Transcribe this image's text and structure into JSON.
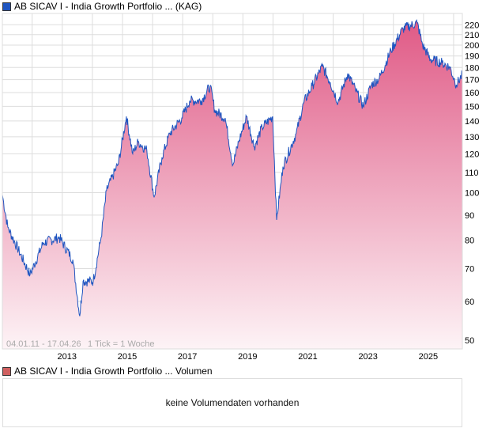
{
  "legend_main": "AB SICAV I - India Growth Portfolio ... (KAG)",
  "legend_volume": "AB SICAV I - India Growth Portfolio ... Volumen",
  "volume_message": "keine Volumendaten vorhanden",
  "colors": {
    "line": "#1f55c0",
    "fill_top": "#e05a86",
    "fill_bottom": "#fdf3f6",
    "grid": "#dddddd",
    "volume_marker": "#d06060"
  },
  "chart_data": {
    "type": "area",
    "title": "AB SICAV I - India Growth Portfolio ... (KAG)",
    "period_label": "04.01.11 - 17.04.26",
    "tick_label": "1 Tick = 1 Woche",
    "y_scale": "log",
    "ylim": [
      48,
      232
    ],
    "xlim": [
      2011.01,
      2026.29
    ],
    "y_ticks": [
      50,
      60,
      70,
      80,
      90,
      100,
      110,
      120,
      130,
      140,
      150,
      160,
      170,
      180,
      190,
      200,
      210,
      220
    ],
    "x_ticks": [
      "2013",
      "2015",
      "2017",
      "2019",
      "2021",
      "2023",
      "2025"
    ],
    "x_tick_values": [
      2013,
      2015,
      2017,
      2019,
      2021,
      2023,
      2025
    ],
    "grid": true,
    "series": [
      {
        "name": "AB SICAV I - India Growth Portfolio (KAG)",
        "x": [
          2011.01,
          2011.19,
          2011.93,
          2012.37,
          2012.9,
          2013.35,
          2013.58,
          2013.69,
          2014.03,
          2014.29,
          2014.47,
          2014.87,
          2015.13,
          2015.34,
          2015.52,
          2015.81,
          2016.05,
          2016.31,
          2016.57,
          2016.97,
          2017.23,
          2017.62,
          2017.91,
          2018.07,
          2018.41,
          2018.67,
          2018.86,
          2019.12,
          2019.38,
          2019.64,
          2019.99,
          2020.12,
          2020.33,
          2020.77,
          2021.03,
          2021.3,
          2021.64,
          2021.9,
          2022.16,
          2022.48,
          2022.74,
          2023.0,
          2023.27,
          2023.53,
          2023.92,
          2024.32,
          2024.79,
          2024.97,
          2025.23,
          2025.62,
          2025.88,
          2026.01,
          2026.09,
          2026.29
        ],
        "y": [
          99,
          85,
          68,
          79,
          81,
          73,
          56,
          66,
          66,
          81,
          101,
          115,
          143,
          120,
          127,
          122,
          98,
          118,
          132,
          142,
          154,
          154,
          165,
          147,
          142,
          114,
          127,
          143,
          124,
          136,
          143,
          88,
          113,
          132,
          153,
          165,
          181,
          168,
          153,
          175,
          162,
          150,
          166,
          171,
          195,
          216,
          222,
          200,
          187,
          184,
          180,
          171,
          166,
          174
        ]
      }
    ]
  }
}
